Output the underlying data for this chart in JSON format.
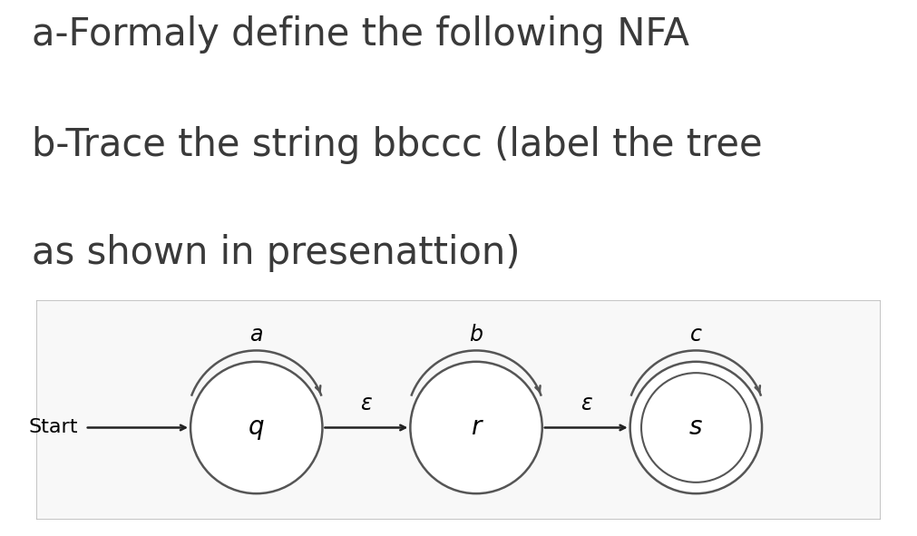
{
  "title_line1": "a-Formaly define the following NFA",
  "title_line2": "b-Trace the string bbccc (label the tree",
  "title_line3": "as shown in presenattion)",
  "bg_color": "#ffffff",
  "box_bg": "#f8f8f8",
  "box_edge": "#bbbbbb",
  "loop_label_q": "a",
  "loop_label_r": "b",
  "loop_label_s": "c",
  "trans_label_qr": "ε",
  "trans_label_rs": "ε",
  "label_q": "q",
  "label_r": "r",
  "label_s": "s",
  "text_color": "#3a3a3a",
  "state_edge_color": "#555555",
  "font_size_title": 30,
  "font_size_state": 20,
  "font_size_loop_label": 17,
  "font_size_trans_label": 17,
  "font_size_start": 16
}
